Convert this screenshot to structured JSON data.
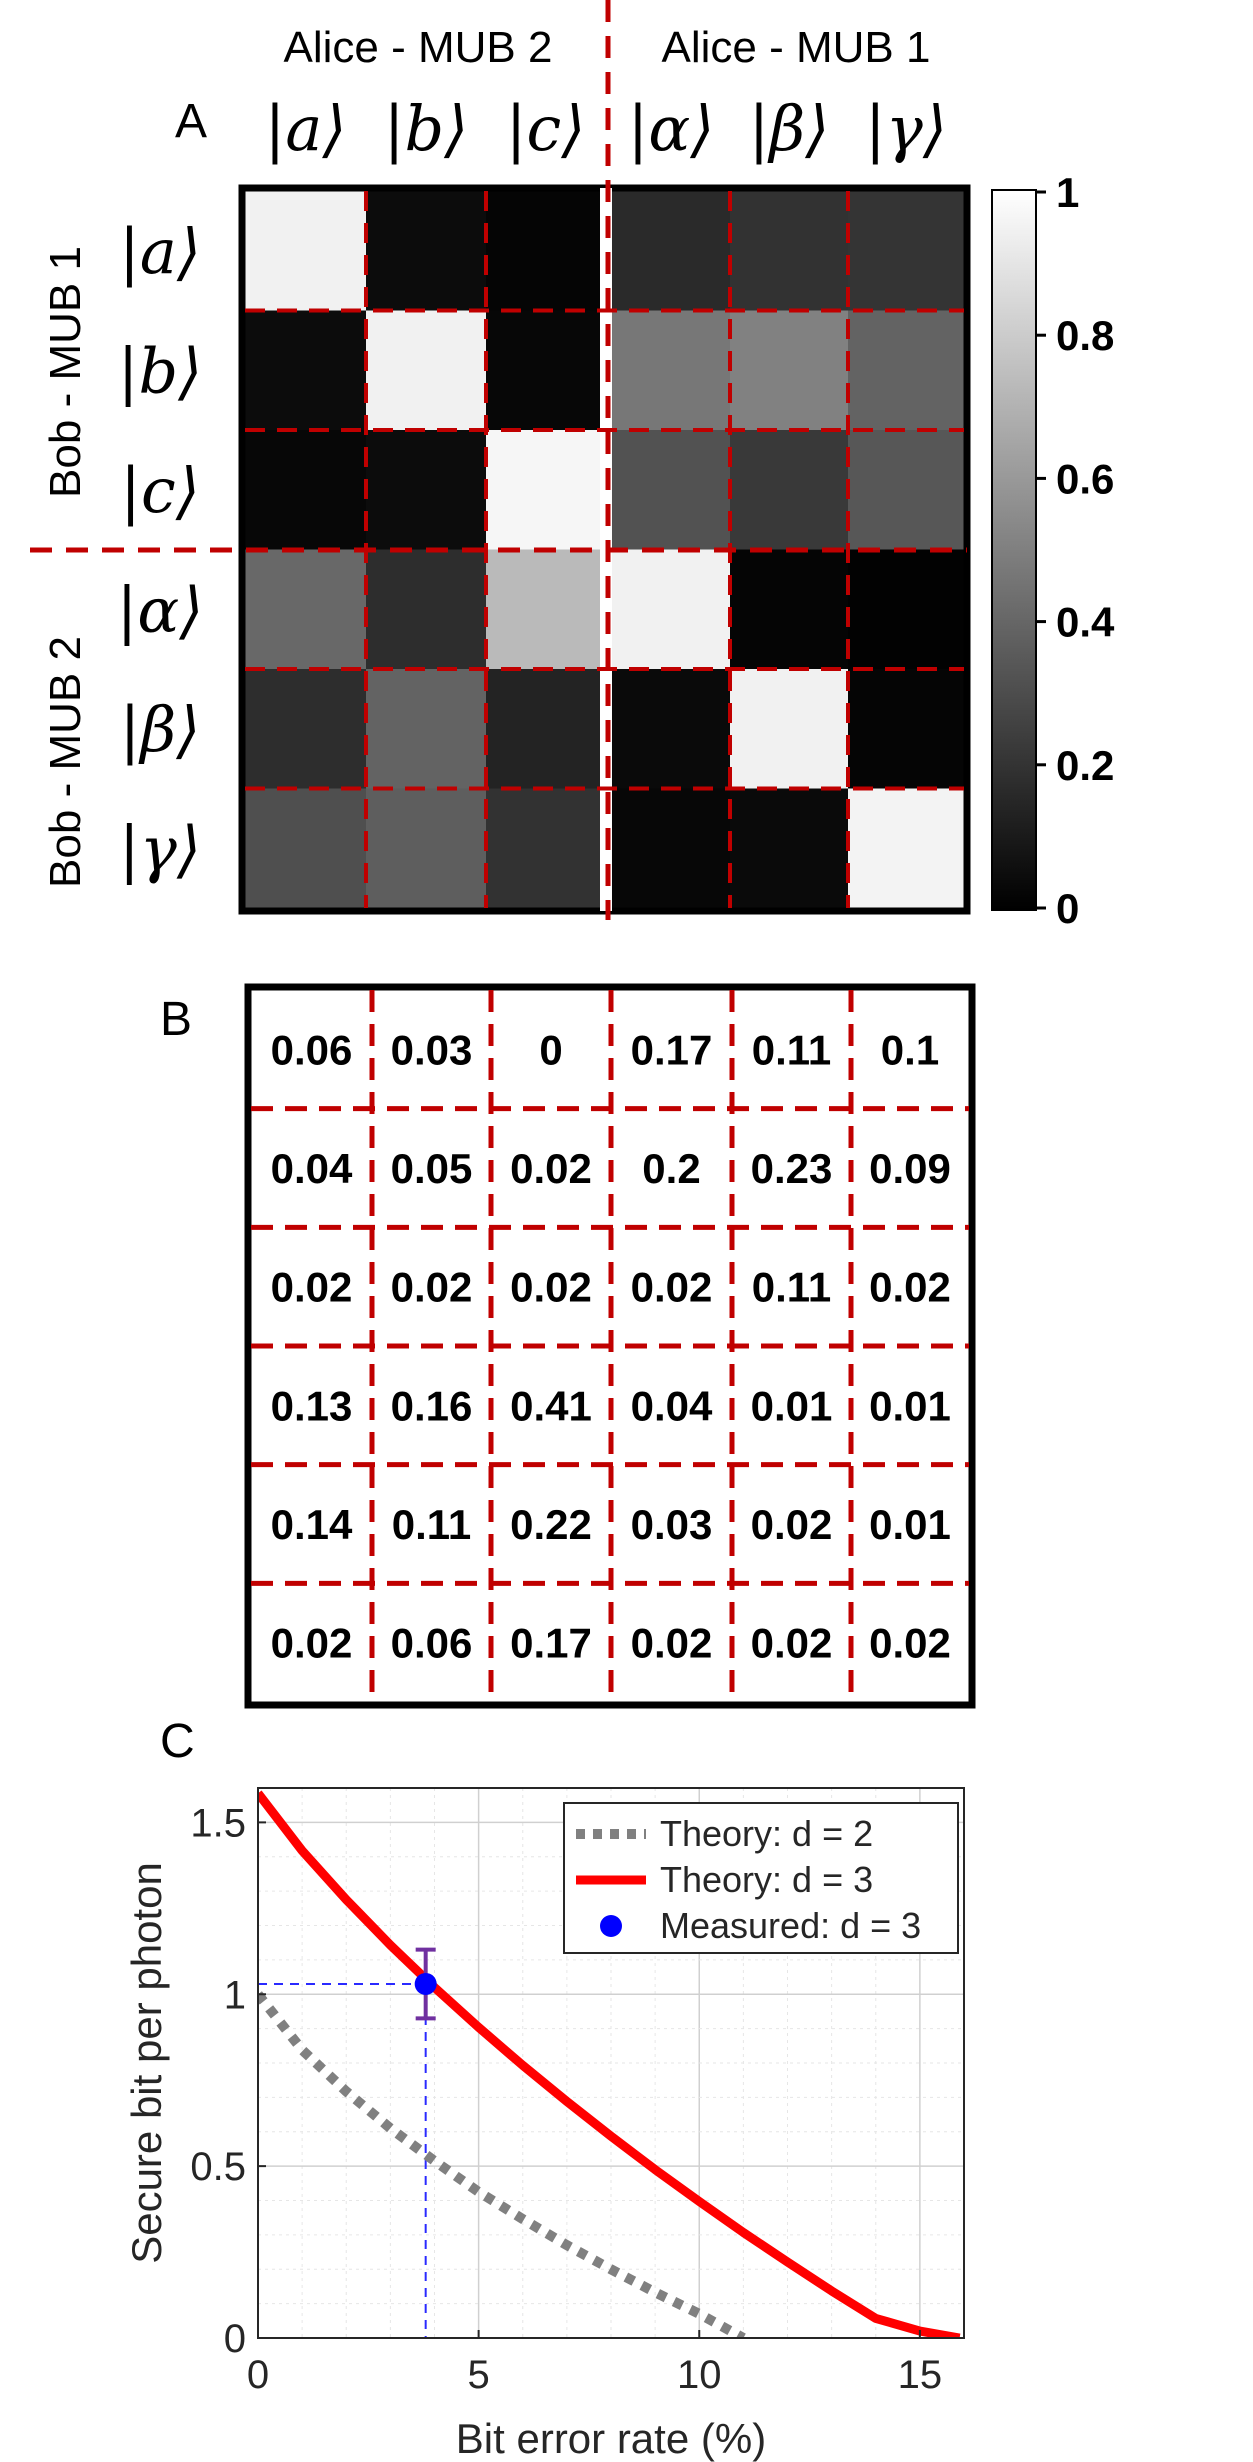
{
  "panel_a": {
    "letter": "A",
    "col_group_labels": [
      "Alice - MUB 2",
      "Alice - MUB 1"
    ],
    "row_group_labels": [
      "Bob - MUB 1",
      "Bob - MUB 2"
    ],
    "col_ket_labels": [
      "|a⟩",
      "|b⟩",
      "|c⟩",
      "|α⟩",
      "|β⟩",
      "|γ⟩"
    ],
    "row_ket_labels": [
      "|a⟩",
      "|b⟩",
      "|c⟩",
      "|α⟩",
      "|β⟩",
      "|γ⟩"
    ],
    "colorbar": {
      "ticks": [
        "0",
        "0.2",
        "0.4",
        "0.6",
        "0.8",
        "1"
      ],
      "min": 0,
      "max": 1
    }
  },
  "panel_b": {
    "letter": "B"
  },
  "panel_c": {
    "letter": "C"
  },
  "colors": {
    "divider": "#c00000",
    "theory_d2": "#808080",
    "theory_d3": "#ff0000",
    "measured": "#0000ff",
    "errorbar": "#7030a0"
  },
  "chart_data": [
    {
      "type": "heatmap",
      "title": "",
      "x_categories": [
        "|a⟩",
        "|b⟩",
        "|c⟩",
        "|α⟩",
        "|β⟩",
        "|γ⟩"
      ],
      "y_categories": [
        "|a⟩",
        "|b⟩",
        "|c⟩",
        "|α⟩",
        "|β⟩",
        "|γ⟩"
      ],
      "values": [
        [
          0.97,
          0.05,
          0.02,
          0.17,
          0.2,
          0.21
        ],
        [
          0.05,
          0.97,
          0.03,
          0.48,
          0.52,
          0.4
        ],
        [
          0.03,
          0.05,
          0.99,
          0.33,
          0.23,
          0.35
        ],
        [
          0.42,
          0.18,
          0.75,
          0.97,
          0.02,
          0.01
        ],
        [
          0.18,
          0.4,
          0.14,
          0.04,
          0.97,
          0.02
        ],
        [
          0.32,
          0.38,
          0.2,
          0.03,
          0.04,
          0.98
        ]
      ],
      "colormap": "gray",
      "zlim": [
        0,
        1
      ]
    },
    {
      "type": "table",
      "cells": [
        [
          "0.06",
          "0.03",
          "0",
          "0.17",
          "0.11",
          "0.1"
        ],
        [
          "0.04",
          "0.05",
          "0.02",
          "0.2",
          "0.23",
          "0.09"
        ],
        [
          "0.02",
          "0.02",
          "0.02",
          "0.02",
          "0.11",
          "0.02"
        ],
        [
          "0.13",
          "0.16",
          "0.41",
          "0.04",
          "0.01",
          "0.01"
        ],
        [
          "0.14",
          "0.11",
          "0.22",
          "0.03",
          "0.02",
          "0.01"
        ],
        [
          "0.02",
          "0.06",
          "0.17",
          "0.02",
          "0.02",
          "0.02"
        ]
      ]
    },
    {
      "type": "line",
      "xlabel": "Bit error rate (%)",
      "ylabel": "Secure bit per photon",
      "xlim": [
        0,
        16
      ],
      "ylim": [
        0,
        1.6
      ],
      "xticks": [
        "0",
        "5",
        "10",
        "15"
      ],
      "yticks": [
        "0",
        "0.5",
        "1",
        "1.5"
      ],
      "grid": true,
      "legend_position": "top-right",
      "series": [
        {
          "name": "Theory: d = 2",
          "style": "dotted",
          "x": [
            0,
            1,
            2,
            3,
            4,
            5,
            6,
            7,
            8,
            9,
            10,
            11
          ],
          "y": [
            1.0,
            0.838,
            0.717,
            0.61,
            0.515,
            0.425,
            0.346,
            0.27,
            0.2,
            0.133,
            0.07,
            0.0
          ]
        },
        {
          "name": "Theory: d = 3",
          "style": "solid",
          "x": [
            0,
            1,
            2,
            3,
            4,
            5,
            6,
            7,
            8,
            9,
            10,
            11,
            12,
            13,
            14,
            15,
            15.9
          ],
          "y": [
            1.585,
            1.418,
            1.275,
            1.143,
            1.02,
            0.904,
            0.793,
            0.688,
            0.587,
            0.49,
            0.397,
            0.307,
            0.221,
            0.137,
            0.057,
            0.02,
            0.0
          ]
        },
        {
          "name": "Measured: d = 3",
          "style": "marker",
          "x": [
            3.8
          ],
          "y": [
            1.03
          ],
          "yerr": [
            0.1
          ]
        }
      ],
      "annotations": [
        {
          "type": "reference-lines",
          "x": 3.8,
          "y": 1.03
        }
      ]
    }
  ]
}
